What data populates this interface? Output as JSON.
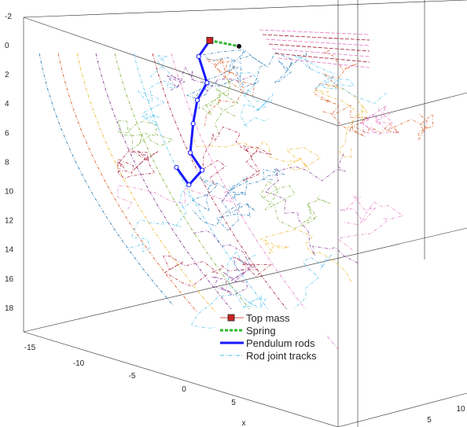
{
  "chart_data": {
    "type": "line",
    "projection": "3d-perspective",
    "title": "",
    "xlabel": "x",
    "ylabel": "",
    "zlabel": "",
    "z_reversed": true,
    "grid": false,
    "legend_placement": "bottom-center",
    "z_ticks": [
      "-2",
      "0",
      "2",
      "4",
      "6",
      "8",
      "10",
      "12",
      "14",
      "16",
      "18"
    ],
    "x_ticks": [
      "-15",
      "-10",
      "-5",
      "0",
      "5"
    ],
    "y_ticks": [
      "5",
      "10"
    ],
    "x_axis_title": "x",
    "ranges": {
      "x": [
        -18,
        8
      ],
      "y": [
        0,
        12
      ],
      "z": [
        -3,
        20
      ]
    },
    "colors": {
      "top_mass": "#cc2222",
      "spring": "#2db82d",
      "rods": "#1a1aff",
      "tracks": [
        "#1f77b4",
        "#d95319",
        "#edb120",
        "#7e2f8e",
        "#77ac30",
        "#4dbeee",
        "#a2142f",
        "#e377c2",
        "#4dbeee"
      ]
    },
    "series": [
      {
        "name": "Top mass",
        "marker": "square",
        "points": [
          {
            "x": 3.6,
            "y": 0,
            "z": -0.3
          }
        ]
      },
      {
        "name": "Spring",
        "style": "dashed-thick",
        "points": [
          {
            "x": 3.6,
            "y": 0,
            "z": -0.3
          },
          {
            "x": 7.8,
            "y": 0,
            "z": 0.1
          }
        ]
      },
      {
        "name": "Pendulum rods",
        "style": "solid-thick",
        "points": [
          {
            "x": 3.6,
            "y": 0,
            "z": -0.3
          },
          {
            "x": 2.0,
            "y": 0,
            "z": 0.8
          },
          {
            "x": 3.2,
            "y": 0,
            "z": 2.6
          },
          {
            "x": 1.8,
            "y": 0,
            "z": 3.8
          },
          {
            "x": 1.2,
            "y": 0,
            "z": 5.4
          },
          {
            "x": 0.8,
            "y": 0,
            "z": 7.4
          },
          {
            "x": 2.5,
            "y": 0,
            "z": 8.6
          },
          {
            "x": 0.6,
            "y": 0,
            "z": 9.6
          },
          {
            "x": -1.2,
            "y": 0,
            "z": 8.4
          }
        ]
      },
      {
        "name": "Rod joint tracks",
        "style": "dash-dot",
        "points": []
      }
    ]
  },
  "legend": {
    "entries": [
      "Top mass",
      "Spring",
      "Pendulum rods",
      "Rod joint tracks"
    ]
  }
}
